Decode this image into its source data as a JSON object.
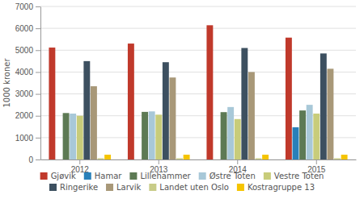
{
  "chart_data": {
    "type": "bar",
    "ylabel": "1000 kroner",
    "categories": [
      "2012",
      "2013",
      "2014",
      "2015"
    ],
    "series": [
      {
        "name": "Gjøvik",
        "color": "#c0392b",
        "values": [
          5119,
          5302,
          6140,
          5574
        ]
      },
      {
        "name": "Hamar",
        "color": "#2980b9",
        "values": [
          0,
          0,
          0,
          1473
        ]
      },
      {
        "name": "Lillehammer",
        "color": "#5d7a54",
        "values": [
          2125,
          2178,
          2166,
          2242
        ]
      },
      {
        "name": "Østre Toten",
        "color": "#a8c8d8",
        "values": [
          2100,
          2200,
          2400,
          2500
        ]
      },
      {
        "name": "Vestre Toten",
        "color": "#c8cc7a",
        "values": [
          2000,
          2050,
          1850,
          2100
        ]
      },
      {
        "name": "Ringerike",
        "color": "#3d5060",
        "values": [
          4500,
          4450,
          5100,
          4850
        ]
      },
      {
        "name": "Larvik",
        "color": "#a89878",
        "values": [
          3350,
          3750,
          4000,
          4150
        ]
      },
      {
        "name": "Landet uten Oslo",
        "color": "#c8cc88",
        "values": [
          55,
          55,
          55,
          55
        ]
      },
      {
        "name": "Kostragruppe 13",
        "color": "#f5c400",
        "values": [
          220,
          220,
          220,
          220
        ]
      }
    ],
    "ylim": [
      0,
      7000
    ],
    "yticks": [
      0,
      1000,
      2000,
      3000,
      4000,
      5000,
      6000,
      7000
    ],
    "grid": true,
    "legend": "bottom"
  }
}
